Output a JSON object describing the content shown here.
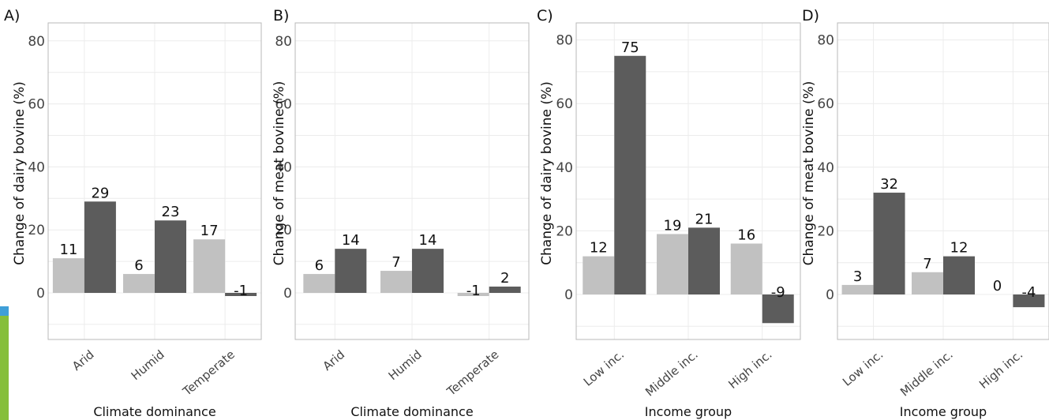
{
  "colors": {
    "light_bar": "#c1c1c1",
    "dark_bar": "#5c5c5c",
    "grid": "#ececec",
    "frame": "#b8b8b8",
    "accent_blue": "#3f9fd8",
    "accent_green": "#86bf3b"
  },
  "chart_data": [
    {
      "type": "bar",
      "panel_label": "A)",
      "title": "",
      "xlabel": "Climate dominance",
      "ylabel": "Change of dairy bovine (%)",
      "ylim": [
        -15,
        85
      ],
      "yticks": [
        0,
        20,
        40,
        60,
        80
      ],
      "grid": true,
      "legend": "none",
      "categories": [
        "Arid",
        "Humid",
        "Temperate"
      ],
      "series": [
        {
          "values": [
            11,
            6,
            17
          ],
          "labels": [
            "11",
            "6",
            "17"
          ]
        },
        {
          "values": [
            29,
            23,
            -1
          ],
          "labels": [
            "29",
            "23",
            "-1"
          ]
        }
      ]
    },
    {
      "type": "bar",
      "panel_label": "B)",
      "title": "",
      "xlabel": "Climate dominance",
      "ylabel": "Change of meat bovine (%)",
      "ylim": [
        -15,
        85
      ],
      "yticks": [
        0,
        20,
        40,
        60,
        80
      ],
      "grid": true,
      "legend": "none",
      "categories": [
        "Arid",
        "Humid",
        "Temperate"
      ],
      "series": [
        {
          "values": [
            6,
            7,
            -1
          ],
          "labels": [
            "6",
            "7",
            "-1"
          ]
        },
        {
          "values": [
            14,
            14,
            2
          ],
          "labels": [
            "14",
            "14",
            "2"
          ]
        }
      ]
    },
    {
      "type": "bar",
      "panel_label": "C)",
      "title": "",
      "xlabel": "Income group",
      "ylabel": "Change of dairy bovine (%)",
      "ylim": [
        -15,
        85
      ],
      "yticks": [
        0,
        20,
        40,
        60,
        80
      ],
      "grid": true,
      "legend": "none",
      "categories": [
        "Low inc.",
        "Middle inc.",
        "High inc."
      ],
      "series": [
        {
          "values": [
            12,
            19,
            16
          ],
          "labels": [
            "12",
            "19",
            "16"
          ]
        },
        {
          "values": [
            75,
            21,
            -9
          ],
          "labels": [
            "75",
            "21",
            "-9"
          ]
        }
      ]
    },
    {
      "type": "bar",
      "panel_label": "D)",
      "title": "",
      "xlabel": "Income group",
      "ylabel": "Change of meat bovine (%)",
      "ylim": [
        -15,
        85
      ],
      "yticks": [
        0,
        20,
        40,
        60,
        80
      ],
      "grid": true,
      "legend": "none",
      "categories": [
        "Low inc.",
        "Middle inc.",
        "High inc."
      ],
      "series": [
        {
          "values": [
            3,
            7,
            0
          ],
          "labels": [
            "3",
            "7",
            "0"
          ]
        },
        {
          "values": [
            32,
            12,
            -4
          ],
          "labels": [
            "32",
            "12",
            "-4"
          ]
        }
      ]
    }
  ]
}
